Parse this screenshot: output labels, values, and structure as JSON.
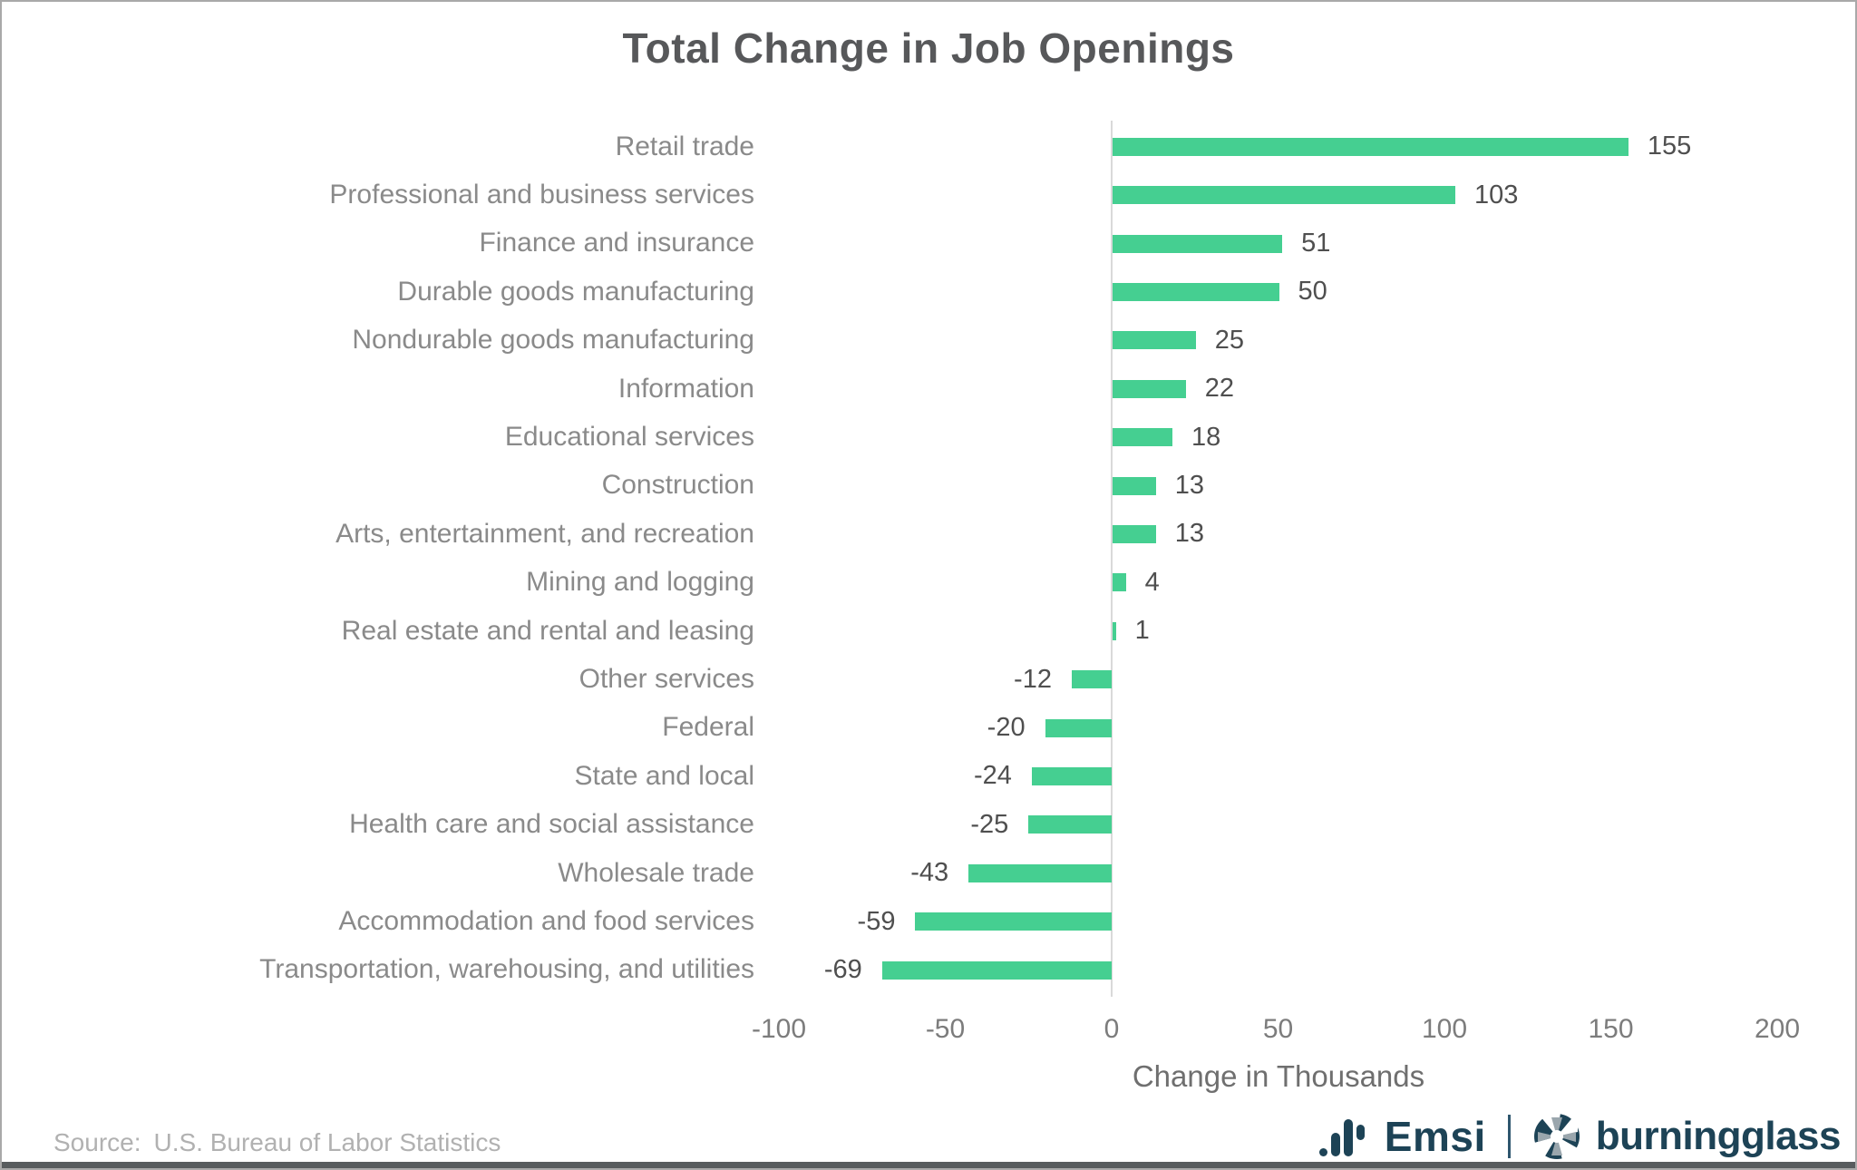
{
  "page": {
    "title": "Total Change in Job Openings",
    "footer": {
      "source_label": "Source:",
      "source_text": "U.S. Bureau of Labor Statistics"
    },
    "brand": {
      "emsi_label": "Emsi",
      "burningglass_label": "burningglass",
      "navy": "#1d4356"
    }
  },
  "chart_data": {
    "type": "bar",
    "orientation": "horizontal",
    "title": "Total Change in Job Openings",
    "categories": [
      "Retail trade",
      "Professional and business services",
      "Finance and insurance",
      "Durable goods manufacturing",
      "Nondurable goods manufacturing",
      "Information",
      "Educational services",
      "Construction",
      "Arts, entertainment, and recreation",
      "Mining and logging",
      "Real estate and rental and leasing",
      "Other services",
      "Federal",
      "State and local",
      "Health care and social assistance",
      "Wholesale trade",
      "Accommodation and food services",
      "Transportation, warehousing, and utilities"
    ],
    "values": [
      155,
      103,
      51,
      50,
      25,
      22,
      18,
      13,
      13,
      4,
      1,
      -12,
      -20,
      -24,
      -25,
      -43,
      -59,
      -69
    ],
    "xlabel": "Change in Thousands",
    "ylabel": "",
    "xlim": [
      -100,
      200
    ],
    "x_ticks": [
      -100,
      -50,
      0,
      50,
      100,
      150,
      200
    ],
    "bar_color": "#45cf91",
    "axis_line_color": "#d9d9d9",
    "grid": false,
    "legend": null
  }
}
